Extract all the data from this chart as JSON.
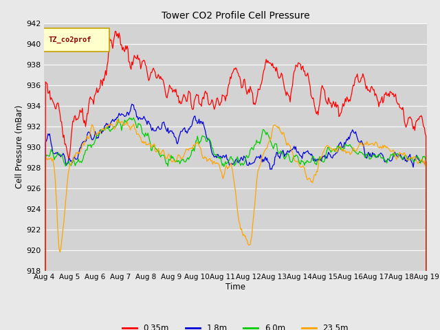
{
  "title": "Tower CO2 Profile Cell Pressure",
  "xlabel": "Time",
  "ylabel": "Cell Pressure (mBar)",
  "ylim": [
    918,
    942
  ],
  "yticks": [
    918,
    920,
    922,
    924,
    926,
    928,
    930,
    932,
    934,
    936,
    938,
    940,
    942
  ],
  "date_labels": [
    "Aug 4",
    "Aug 5",
    "Aug 6",
    "Aug 7",
    "Aug 8",
    "Aug 9",
    "Aug 10",
    "Aug 11",
    "Aug 12",
    "Aug 13",
    "Aug 14",
    "Aug 15",
    "Aug 16",
    "Aug 17",
    "Aug 18",
    "Aug 19"
  ],
  "colors": {
    "0.35m": "#ff0000",
    "1.8m": "#0000dd",
    "6.0m": "#00cc00",
    "23.5m": "#ffa500"
  },
  "legend_label": "TZ_co2prof",
  "bg_color": "#e8e8e8",
  "plot_bg_color": "#d3d3d3",
  "grid_color": "#ffffff",
  "n_points": 480
}
